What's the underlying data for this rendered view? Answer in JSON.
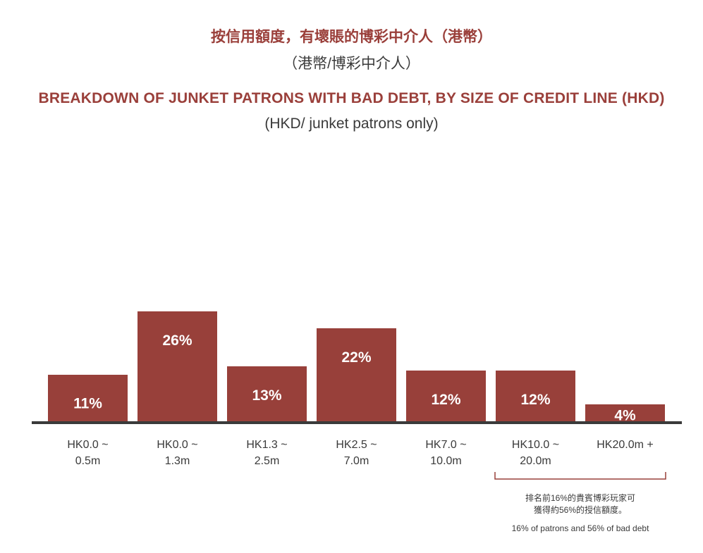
{
  "header": {
    "title_zh": "按信用額度，有壞賬的博彩中介人（港幣）",
    "subtitle_zh": "（港幣/博彩中介人）",
    "title_en": "BREAKDOWN OF JUNKET PATRONS WITH BAD DEBT, BY SIZE OF CREDIT LINE (HKD)",
    "subtitle_en": "(HKD/ junket patrons only)"
  },
  "chart_data": {
    "type": "bar",
    "categories": [
      [
        "HK0.0 ~",
        "0.5m"
      ],
      [
        "HK0.0 ~",
        "1.3m"
      ],
      [
        "HK1.3 ~",
        "2.5m"
      ],
      [
        "HK2.5 ~",
        "7.0m"
      ],
      [
        "HK7.0 ~",
        "10.0m"
      ],
      [
        "HK10.0 ~",
        "20.0m"
      ],
      [
        "HK20.0m +"
      ]
    ],
    "values": [
      11,
      26,
      13,
      22,
      12,
      12,
      4
    ],
    "value_labels": [
      "11%",
      "26%",
      "13%",
      "22%",
      "12%",
      "12%",
      "4%"
    ],
    "unit": "%",
    "bar_color": "#98403a",
    "axis_color": "#3a3a3a",
    "annotation": {
      "spans_categories": [
        5,
        6
      ],
      "text_zh_lines": [
        "排名前16%的貴賓博彩玩家可",
        "獲得約56%的授信額度。"
      ],
      "text_en": "16% of patrons and 56% of bad debt",
      "color": "#98403a"
    }
  }
}
